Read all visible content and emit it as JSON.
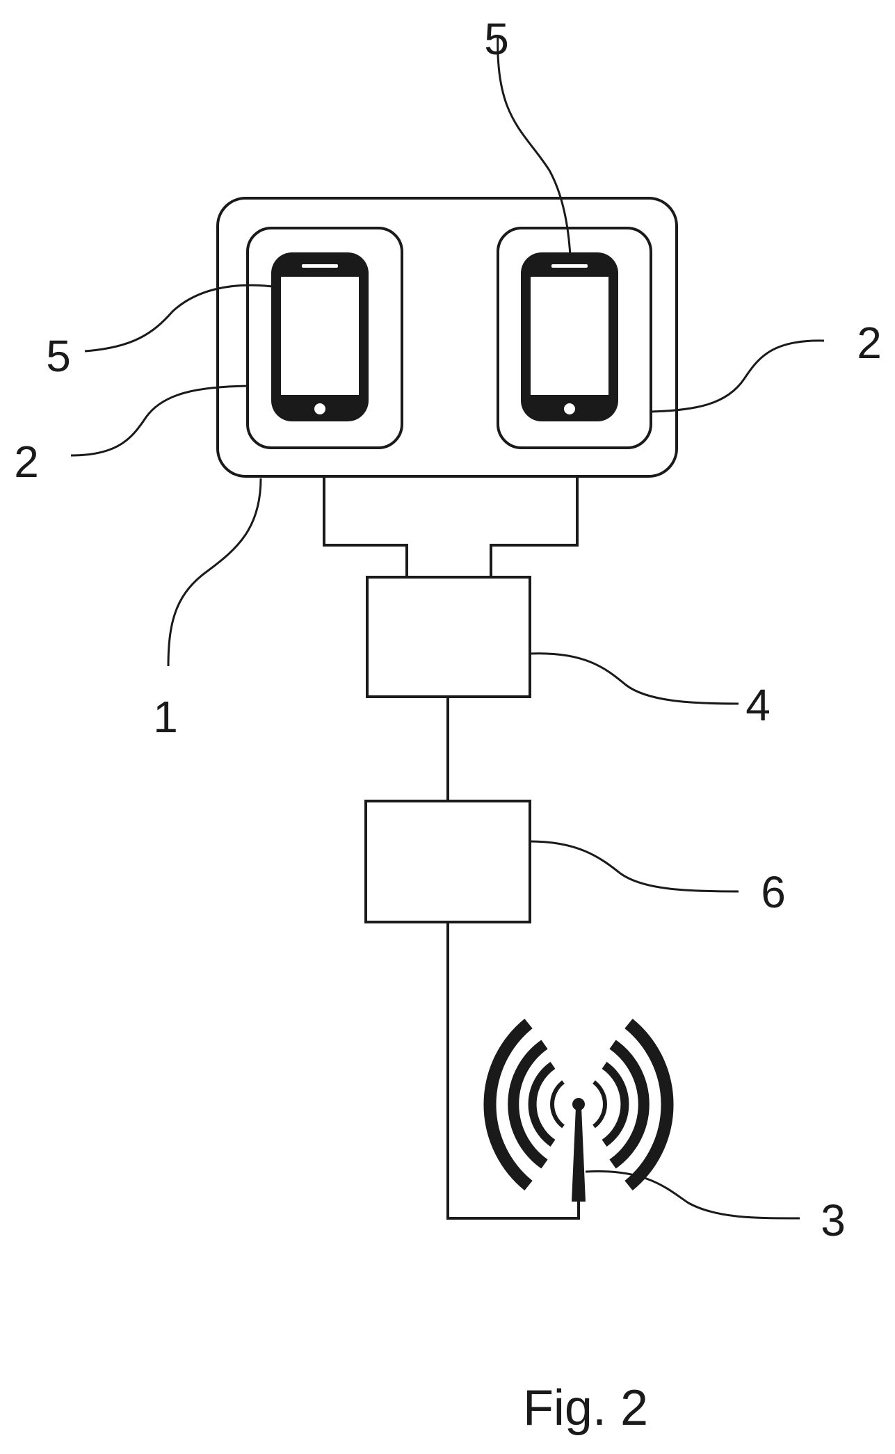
{
  "figure": {
    "caption": "Fig. 2"
  },
  "labels": {
    "holder": "1",
    "slot_left": "2",
    "slot_right": "2",
    "antenna": "3",
    "unit_upper": "4",
    "device_left": "5",
    "device_right": "5",
    "unit_lower": "6"
  },
  "colors": {
    "ink": "#1a1a1a",
    "background": "#ffffff"
  },
  "icons": {
    "device": "smartphone-icon",
    "antenna": "wireless-antenna-icon"
  }
}
